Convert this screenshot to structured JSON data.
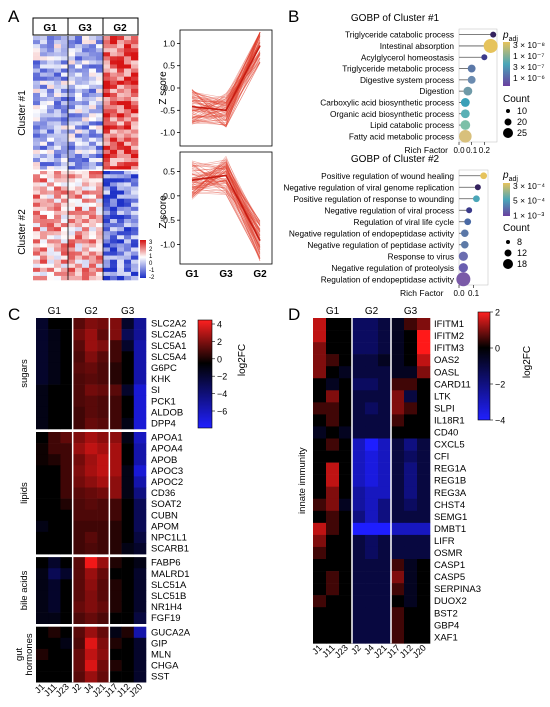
{
  "panels": {
    "A": {
      "letter": "A",
      "groups": [
        "G1",
        "G3",
        "G2"
      ],
      "cluster_labels": [
        "Cluster #1",
        "Cluster #2"
      ],
      "colorbar_ticks": [
        "3",
        "2",
        "1",
        "0",
        "-1",
        "-2"
      ],
      "line_plots": {
        "ylabel": "Z score",
        "x_categories": [
          "G1",
          "G3",
          "G2"
        ],
        "top_yticks": [
          "1.0",
          "0.5",
          "0.0",
          "-0.5",
          "-1.0"
        ],
        "bottom_yticks": [
          "0.5",
          "0.0",
          "-0.5",
          "-1.0"
        ]
      }
    },
    "B": {
      "letter": "B",
      "p_symbol": "p",
      "p_sub": "adj",
      "count_title": "Count"
    },
    "C": {
      "letter": "C",
      "colorbar_title": "log2FC",
      "colorbar_ticks": [
        "4",
        "2",
        "0",
        "−2",
        "−4",
        "−6"
      ]
    },
    "D": {
      "letter": "D",
      "colorbar_title": "log2FC",
      "colorbar_ticks": [
        "2",
        "0",
        "−2",
        "−4"
      ]
    }
  },
  "chart_data": [
    {
      "panel": "A-heatmap",
      "type": "heatmap",
      "columns": [
        "G1",
        "G3",
        "G2"
      ],
      "rows": [
        "Cluster #1",
        "Cluster #2"
      ],
      "colorbar_range": [
        -2,
        3
      ]
    },
    {
      "panel": "A-lines-cluster1",
      "type": "line",
      "x": [
        "G1",
        "G3",
        "G2"
      ],
      "ylabel": "Z score",
      "ylim": [
        -1.3,
        1.3
      ],
      "median_profile": [
        -0.42,
        -0.5,
        0.95
      ]
    },
    {
      "panel": "A-lines-cluster2",
      "type": "line",
      "x": [
        "G1",
        "G3",
        "G2"
      ],
      "ylabel": "Z score",
      "ylim": [
        -1.4,
        0.9
      ],
      "median_profile": [
        0.32,
        0.42,
        -0.92
      ]
    },
    {
      "panel": "B-top",
      "type": "scatter",
      "title": "GOBP of Cluster #1",
      "xlabel": "Rich Factor",
      "xticks": [
        "0.0",
        "0.1",
        "0.2"
      ],
      "xlim": [
        0,
        0.3
      ],
      "legend_ticks": [
        "3 × 10⁻⁸",
        "1 × 10⁻⁷",
        "3 × 10⁻⁷",
        "1 × 10⁻⁶"
      ],
      "size_ticks": [
        "10",
        "20",
        "25"
      ],
      "terms": [
        "Triglyceride catabolic process",
        "Intestinal absorption",
        "Acylglycerol homeostasis",
        "Triglyceride metabolic process",
        "Digestive system process",
        "Digestion",
        "Carboxylic acid biosynthetic process",
        "Organic acid biosynthetic process",
        "Lipid catabolic process",
        "Fatty acid metabolic process"
      ],
      "rich_factor": [
        0.27,
        0.25,
        0.2,
        0.1,
        0.1,
        0.07,
        0.05,
        0.05,
        0.05,
        0.05
      ],
      "padj_color": [
        "#34225f",
        "#e6c35c",
        "#3c3a8c",
        "#5b78a8",
        "#6b8bb0",
        "#6f9aa8",
        "#3aa0b8",
        "#59b0b5",
        "#7cc0a8",
        "#d8c07c"
      ],
      "count": [
        8,
        25,
        8,
        12,
        12,
        14,
        14,
        14,
        16,
        22
      ]
    },
    {
      "panel": "B-bottom",
      "type": "scatter",
      "title": "GOBP of Cluster #2",
      "xlabel": "Rich Factor",
      "xticks": [
        "0.0",
        "0.1"
      ],
      "xlim": [
        0,
        0.2
      ],
      "legend_ticks": [
        "3 × 10⁻⁴",
        "5 × 10⁻⁴",
        "1 × 10⁻³"
      ],
      "size_ticks": [
        "8",
        "12",
        "18"
      ],
      "terms": [
        "Positive regulation of wound healing",
        "Negative regulation of viral genome replication",
        "Positive regulation of response to wounding",
        "Negative regulation of viral process",
        "Regulation of viral life cycle",
        "Negative regulation of endopeptidase activity",
        "Negative regulation of peptidase activity",
        "Response to virus",
        "Negative regulation of proteolysis",
        "Regulation of endopeptidase activity"
      ],
      "rich_factor": [
        0.17,
        0.13,
        0.12,
        0.07,
        0.06,
        0.04,
        0.04,
        0.03,
        0.03,
        0.03
      ],
      "padj_color": [
        "#e6c35c",
        "#34225f",
        "#4aa6b8",
        "#3a3a8a",
        "#4a6aa5",
        "#5b78a8",
        "#5d7aa7",
        "#6b6db0",
        "#6a5eb0",
        "#7a5aa8"
      ],
      "count": [
        9,
        8,
        9,
        8,
        9,
        10,
        10,
        12,
        12,
        18
      ]
    },
    {
      "panel": "C",
      "type": "heatmap",
      "group_labels": [
        "G1",
        "G2",
        "G3"
      ],
      "columns": [
        "J1",
        "J11",
        "J23",
        "J2",
        "J4",
        "J21",
        "J17",
        "J12",
        "J20"
      ],
      "row_groups": [
        {
          "label": "sugars",
          "genes": [
            "SLC2A2",
            "SLC2A5",
            "SLC5A1",
            "SLC5A4",
            "G6PC",
            "KHK",
            "SI",
            "PCK1",
            "ALDOB",
            "DPP4"
          ]
        },
        {
          "label": "lipids",
          "genes": [
            "APOA1",
            "APOA4",
            "APOB",
            "APOC3",
            "APOC2",
            "CD36",
            "SOAT2",
            "CUBN",
            "APOM",
            "NPC1L1",
            "SCARB1"
          ]
        },
        {
          "label": "bile acids",
          "genes": [
            "FABP6",
            "MALRD1",
            "SLC51A",
            "SLC51B",
            "NR1H4",
            "FGF19"
          ]
        },
        {
          "label": "gut hormones",
          "label_lines": [
            "gut",
            "hormones"
          ],
          "genes": [
            "GUCA2A",
            "GIP",
            "MLN",
            "CHGA",
            "SST"
          ]
        }
      ],
      "values": [
        [
          -1,
          0,
          0,
          1.4,
          2,
          1.8,
          2,
          -1,
          -3.5
        ],
        [
          -1,
          -0.5,
          0,
          1.8,
          2.4,
          1.5,
          2,
          -2,
          -3.5
        ],
        [
          -1,
          -0.5,
          0,
          1.4,
          2.4,
          2,
          1,
          -1,
          -4
        ],
        [
          -1,
          -0.5,
          0,
          1.2,
          2,
          1.4,
          1,
          0,
          -4
        ],
        [
          -1,
          -0.5,
          0,
          1.4,
          1.6,
          1.2,
          0.6,
          0,
          -4
        ],
        [
          -1,
          -0.5,
          0,
          1.2,
          1.4,
          1.2,
          0.6,
          0,
          -4
        ],
        [
          -0.5,
          0,
          0,
          1.2,
          1.8,
          1.6,
          1.4,
          -1,
          -5
        ],
        [
          -0.5,
          0,
          0,
          1.2,
          1.4,
          1.2,
          1,
          0,
          -5
        ],
        [
          -0.5,
          0,
          0,
          1,
          1.4,
          1.2,
          1,
          0,
          -5
        ],
        [
          -0.5,
          0,
          0,
          1,
          1.6,
          1.4,
          1,
          -0.5,
          -5
        ],
        [
          0,
          1,
          1.5,
          2,
          2.6,
          2.2,
          2.2,
          -0.5,
          -4.5
        ],
        [
          0.2,
          1,
          1,
          2.4,
          3,
          2.6,
          2.6,
          0,
          -4
        ],
        [
          0.2,
          0.5,
          1,
          1.8,
          2.5,
          3,
          2.6,
          0,
          -4
        ],
        [
          0,
          0,
          1,
          2,
          2.6,
          3,
          2.6,
          -0.5,
          -5
        ],
        [
          0,
          0,
          1,
          1.8,
          2.2,
          2.6,
          2.2,
          -0.5,
          -4
        ],
        [
          0,
          0,
          1,
          1.4,
          1.6,
          1.8,
          2.2,
          -0.5,
          -3
        ],
        [
          0,
          0,
          0.5,
          1.2,
          1.4,
          1.2,
          1,
          0,
          -2
        ],
        [
          0,
          0,
          0,
          1.2,
          1.2,
          1.2,
          1,
          0,
          -2
        ],
        [
          -0.5,
          0,
          0,
          1,
          1,
          1,
          0.6,
          0,
          -2
        ],
        [
          0,
          0,
          0,
          1,
          1.4,
          1,
          0.6,
          0,
          -1.5
        ],
        [
          0,
          0,
          0,
          1,
          1.2,
          1,
          0.6,
          -0.5,
          -1
        ],
        [
          0,
          -1,
          0,
          1.4,
          3.8,
          2.4,
          0.5,
          0,
          -0.5
        ],
        [
          -0.5,
          -2,
          -1,
          1.4,
          2.4,
          1.6,
          0,
          0,
          -1
        ],
        [
          -0.5,
          -1,
          0,
          1.4,
          2.2,
          1.4,
          0.5,
          0,
          -1
        ],
        [
          -0.5,
          -1,
          0,
          1.4,
          2,
          1.4,
          0.5,
          0,
          -1
        ],
        [
          -0.5,
          -1,
          0,
          1.6,
          2,
          1.6,
          0.5,
          0,
          -1
        ],
        [
          -0.5,
          -0.5,
          0,
          1.2,
          1.6,
          1.2,
          0,
          0,
          -1.5
        ],
        [
          0,
          0.5,
          0,
          1.4,
          2.4,
          1.6,
          -0.5,
          0.5,
          -4
        ],
        [
          0,
          0,
          -0.5,
          1.2,
          3.5,
          2,
          0.5,
          0,
          -1
        ],
        [
          0.5,
          0,
          0,
          1.6,
          3,
          2.2,
          0,
          0,
          -1
        ],
        [
          0,
          0,
          0,
          1.6,
          3.4,
          1.8,
          0.5,
          0,
          -1
        ],
        [
          0,
          0,
          0,
          1.4,
          2.4,
          1.6,
          0,
          0,
          -1
        ]
      ]
    },
    {
      "panel": "D",
      "type": "heatmap",
      "group_labels": [
        "G1",
        "G2",
        "G3"
      ],
      "columns": [
        "J1",
        "J11",
        "J23",
        "J2",
        "J4",
        "J21",
        "J17",
        "J12",
        "J20"
      ],
      "row_group": "innate immunity",
      "genes": [
        "IFITM1",
        "IFITM2",
        "IFITM3",
        "OAS2",
        "OASL",
        "CARD11",
        "LTK",
        "SLPI",
        "IL18R1",
        "CD40",
        "CXCL5",
        "CFI",
        "REG1A",
        "REG1B",
        "REG3A",
        "CHST4",
        "SEMG1",
        "DMBT1",
        "LIFR",
        "OSMR",
        "CASP1",
        "CASP5",
        "SERPINA3",
        "DUOX2",
        "BST2",
        "GBP4",
        "XAF1"
      ],
      "values": [
        [
          1.5,
          0,
          0,
          -1.5,
          -1.5,
          -1,
          -0.5,
          0.5,
          1
        ],
        [
          1.5,
          0,
          0,
          -1.5,
          -1.5,
          -1,
          -0.5,
          0,
          2
        ],
        [
          1,
          0,
          0,
          -1.5,
          -1.5,
          -1,
          -0.5,
          0,
          2
        ],
        [
          1,
          0.5,
          0,
          -1,
          -1,
          -0.5,
          -0.5,
          0,
          1.5
        ],
        [
          1,
          0,
          -0.5,
          -1,
          -1,
          -1,
          -0.5,
          -0.5,
          1
        ],
        [
          0,
          -0.5,
          0,
          -1.5,
          -1.5,
          -1,
          0.5,
          0.5,
          0
        ],
        [
          0,
          1,
          0,
          -1,
          -1,
          -1,
          1,
          -1,
          0
        ],
        [
          0.5,
          0.5,
          0,
          -1,
          -1.5,
          -1,
          1,
          0.5,
          0
        ],
        [
          0,
          0.5,
          0,
          -1,
          -1,
          -1,
          0.5,
          0,
          0
        ],
        [
          -0.5,
          0,
          -0.5,
          -1,
          -1,
          -1,
          0,
          0,
          0
        ],
        [
          0,
          0.5,
          0,
          -3,
          -4,
          -3,
          -1,
          -2,
          -1
        ],
        [
          0,
          0,
          0,
          -3,
          -3.5,
          -3,
          -1,
          -1.5,
          -1
        ],
        [
          0,
          1.5,
          0,
          -3,
          -3.5,
          -3,
          -1,
          -2,
          -1
        ],
        [
          0,
          1.5,
          0,
          -3,
          -3.5,
          -3,
          -1,
          -2,
          -1
        ],
        [
          0,
          1,
          0,
          -2.5,
          -3,
          -3,
          -1,
          -2,
          -1
        ],
        [
          0.5,
          1,
          -0.5,
          -2.5,
          -3,
          -2,
          -1,
          -1.5,
          -1
        ],
        [
          0,
          0.5,
          0,
          -2,
          -3,
          -2,
          -1,
          -1,
          -1
        ],
        [
          1.5,
          0.5,
          0,
          -4,
          -4,
          -4,
          -3,
          -3,
          -3
        ],
        [
          1,
          0,
          0,
          -1,
          -1.5,
          -1,
          -1,
          -1,
          -1
        ],
        [
          0.5,
          0,
          0,
          -1,
          -1.5,
          -1,
          -1,
          -1,
          -1
        ],
        [
          0,
          0,
          0,
          -1,
          -1,
          -1,
          0.5,
          -0.5,
          0
        ],
        [
          0,
          0.5,
          0,
          -1,
          -1,
          -1,
          1,
          -0.5,
          0
        ],
        [
          0,
          0.5,
          0,
          -1,
          -1,
          -1,
          0.5,
          -0.5,
          0
        ],
        [
          0.5,
          0,
          0,
          -1,
          -1,
          -1,
          0,
          -0.5,
          0
        ],
        [
          0,
          0,
          0,
          -1,
          -1,
          -1,
          0.5,
          0,
          0
        ],
        [
          0,
          0,
          0,
          -1,
          -1,
          -1,
          0.5,
          0,
          0
        ],
        [
          0,
          0,
          0,
          -1,
          -1,
          -1,
          0.5,
          0,
          0
        ]
      ]
    }
  ]
}
